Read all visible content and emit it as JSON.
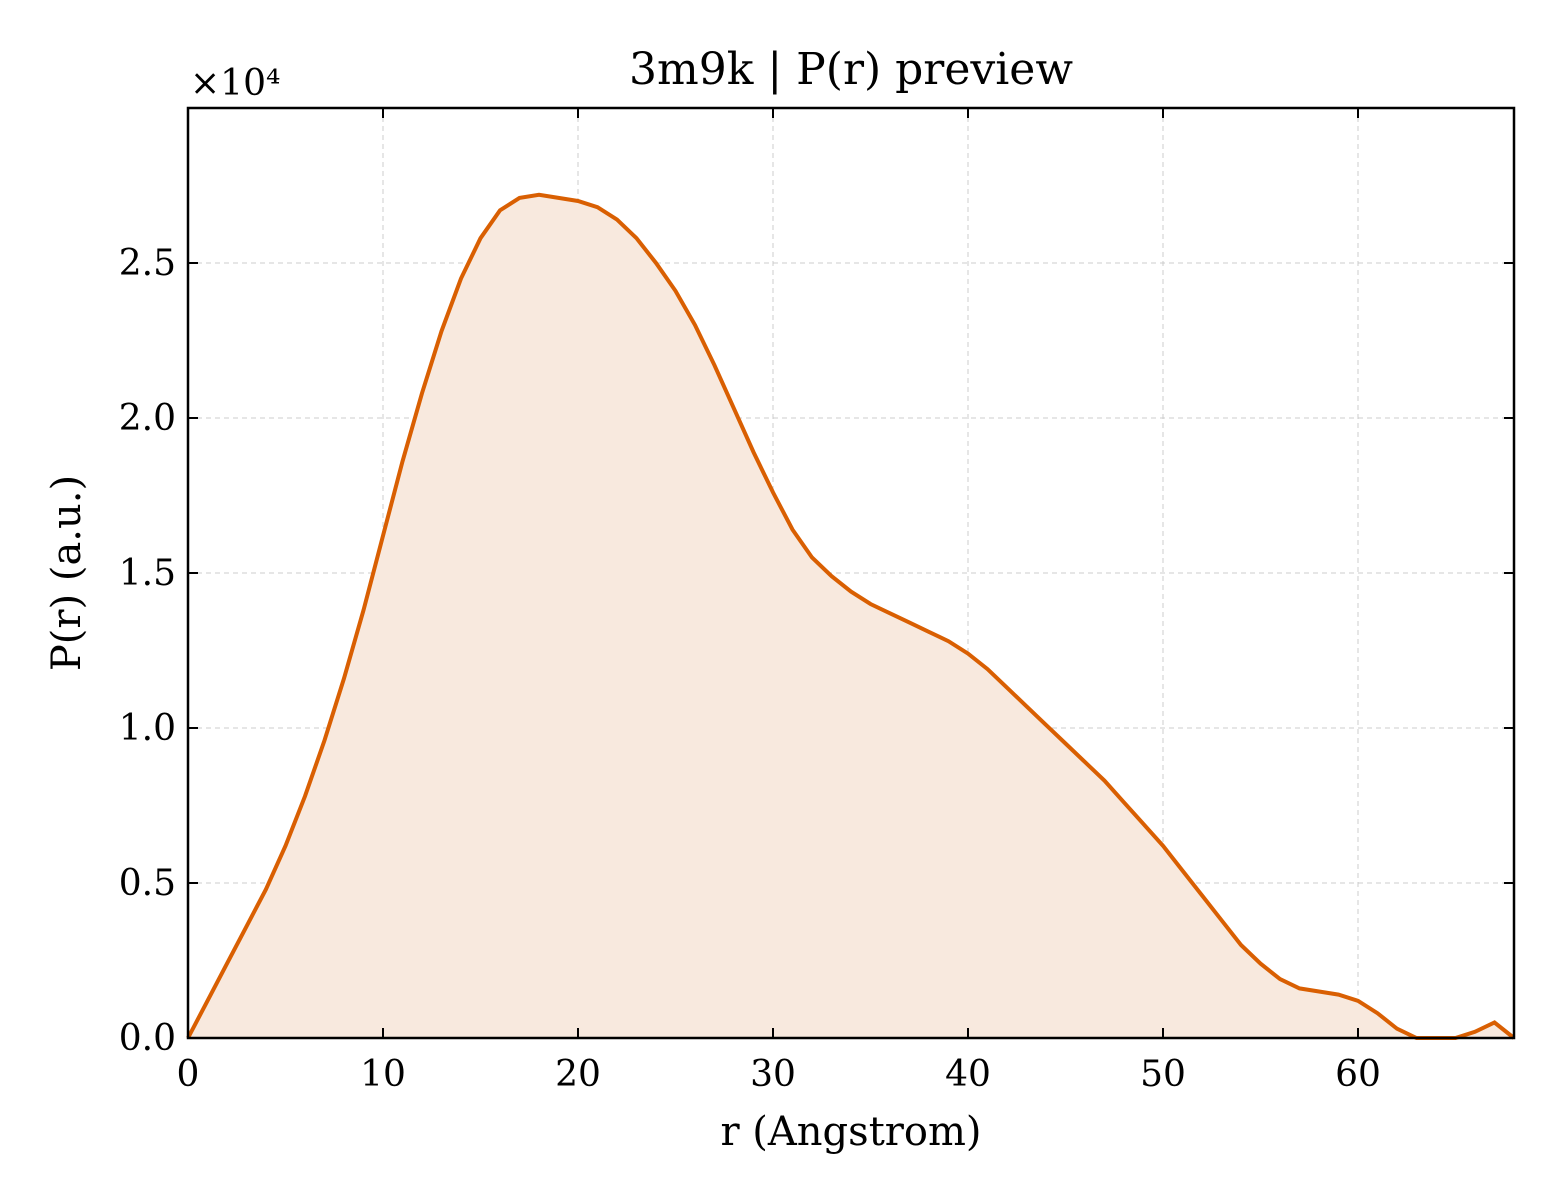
{
  "chart_data": {
    "type": "area",
    "title": "3m9k | P(r) preview",
    "xlabel": "r (Angstrom)",
    "ylabel": "P(r) (a.u.)",
    "y_offset_label": "×10⁴",
    "xlim": [
      0,
      68
    ],
    "ylim": [
      0,
      3.0
    ],
    "xticks": [
      0,
      10,
      20,
      30,
      40,
      50,
      60
    ],
    "yticks": [
      0.0,
      0.5,
      1.0,
      1.5,
      2.0,
      2.5
    ],
    "xtick_labels": [
      "0",
      "10",
      "20",
      "30",
      "40",
      "50",
      "60"
    ],
    "ytick_labels": [
      "0.0",
      "0.5",
      "1.0",
      "1.5",
      "2.0",
      "2.5"
    ],
    "grid": true,
    "line_color": "#d95f02",
    "fill_color": "#f8e9de",
    "series": [
      {
        "x": [
          0,
          1,
          2,
          3,
          4,
          5,
          6,
          7,
          8,
          9,
          10,
          11,
          12,
          13,
          14,
          15,
          16,
          17,
          18,
          19,
          20,
          21,
          22,
          23,
          24,
          25,
          26,
          27,
          28,
          29,
          30,
          31,
          32,
          33,
          34,
          35,
          36,
          37,
          38,
          39,
          40,
          41,
          42,
          43,
          44,
          45,
          46,
          47,
          48,
          49,
          50,
          51,
          52,
          53,
          54,
          55,
          56,
          57,
          58,
          59,
          60,
          61,
          62,
          63,
          64,
          65,
          66,
          67,
          68
        ],
        "y": [
          0.0,
          0.12,
          0.24,
          0.36,
          0.48,
          0.62,
          0.78,
          0.96,
          1.16,
          1.38,
          1.62,
          1.86,
          2.08,
          2.28,
          2.45,
          2.58,
          2.67,
          2.71,
          2.72,
          2.71,
          2.7,
          2.68,
          2.64,
          2.58,
          2.5,
          2.41,
          2.3,
          2.17,
          2.03,
          1.89,
          1.76,
          1.64,
          1.55,
          1.49,
          1.44,
          1.4,
          1.37,
          1.34,
          1.31,
          1.28,
          1.24,
          1.19,
          1.13,
          1.07,
          1.01,
          0.95,
          0.89,
          0.83,
          0.76,
          0.69,
          0.62,
          0.54,
          0.46,
          0.38,
          0.3,
          0.24,
          0.19,
          0.16,
          0.15,
          0.14,
          0.12,
          0.08,
          0.03,
          0.0,
          0.0,
          0.0,
          0.02,
          0.05,
          0.0
        ]
      }
    ]
  }
}
